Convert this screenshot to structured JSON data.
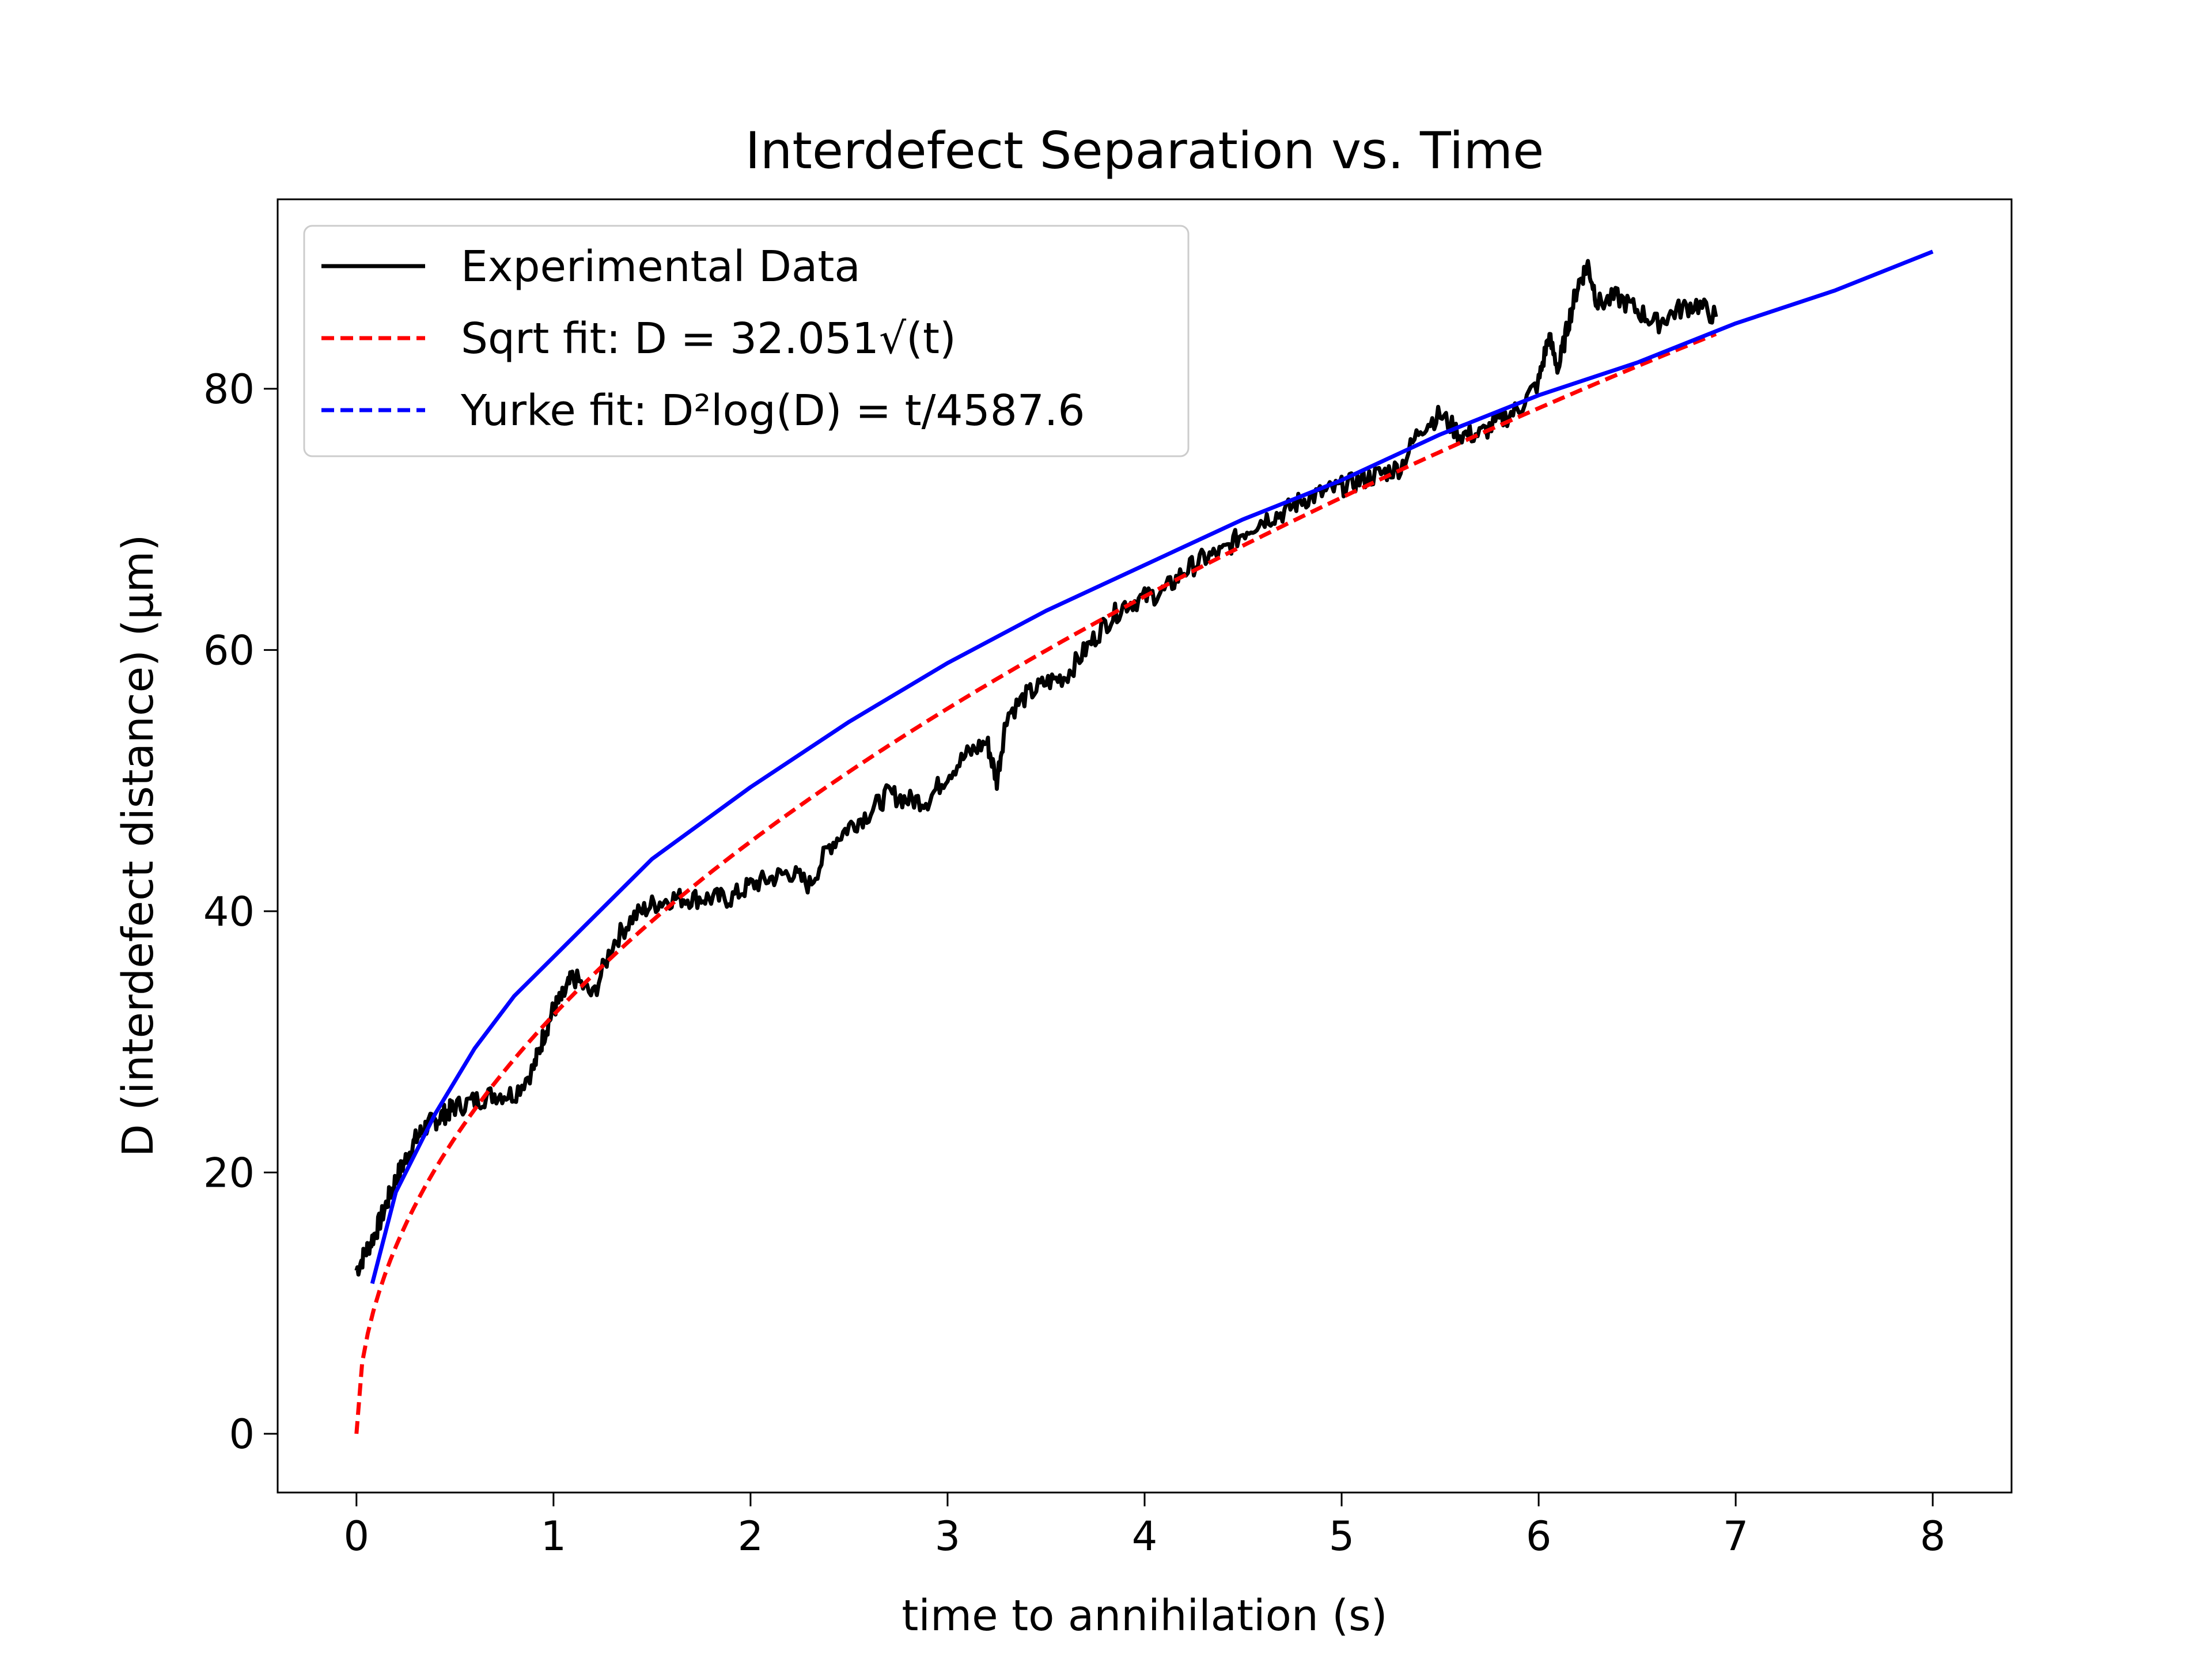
{
  "chart_data": {
    "type": "line",
    "title": "Interdefect Separation vs. Time",
    "xlabel": "time to annihilation (s)",
    "ylabel": "D (interdefect distance) (μm)",
    "xlim": [
      -0.4,
      8.4
    ],
    "ylim": [
      -4.5,
      94.5
    ],
    "xticks": [
      0,
      1,
      2,
      3,
      4,
      5,
      6,
      7,
      8
    ],
    "yticks": [
      0,
      20,
      40,
      60,
      80
    ],
    "grid": false,
    "legend_position": "top-left",
    "series": [
      {
        "name": "Experimental Data",
        "style": "solid",
        "color": "#000000",
        "x": [
          0.0,
          0.05,
          0.1,
          0.15,
          0.2,
          0.25,
          0.3,
          0.35,
          0.4,
          0.45,
          0.5,
          0.6,
          0.7,
          0.8,
          0.9,
          0.95,
          1.0,
          1.05,
          1.1,
          1.2,
          1.3,
          1.4,
          1.5,
          1.6,
          1.7,
          1.8,
          1.9,
          2.0,
          2.1,
          2.2,
          2.3,
          2.4,
          2.5,
          2.6,
          2.7,
          2.8,
          2.9,
          3.0,
          3.1,
          3.2,
          3.25,
          3.3,
          3.4,
          3.5,
          3.6,
          3.7,
          3.8,
          3.9,
          4.0,
          4.1,
          4.2,
          4.3,
          4.4,
          4.5,
          4.6,
          4.7,
          4.8,
          4.9,
          5.0,
          5.1,
          5.2,
          5.3,
          5.4,
          5.5,
          5.6,
          5.7,
          5.8,
          5.9,
          6.0,
          6.05,
          6.1,
          6.15,
          6.2,
          6.25,
          6.3,
          6.4,
          6.5,
          6.6,
          6.7,
          6.8,
          6.9
        ],
        "y": [
          12.5,
          14.0,
          15.5,
          17.5,
          19.5,
          21.0,
          22.5,
          23.5,
          24.0,
          24.5,
          25.0,
          25.5,
          26.0,
          26.0,
          28.0,
          30.5,
          32.5,
          33.5,
          35.0,
          33.5,
          37.5,
          39.5,
          40.5,
          41.0,
          41.0,
          41.0,
          41.0,
          42.0,
          42.5,
          43.0,
          42.0,
          45.0,
          46.5,
          47.5,
          49.0,
          48.5,
          48.5,
          50.5,
          52.0,
          53.0,
          50.0,
          55.0,
          56.5,
          57.5,
          58.0,
          60.0,
          62.0,
          63.5,
          64.0,
          64.5,
          66.0,
          67.0,
          67.5,
          69.0,
          70.0,
          70.5,
          71.5,
          72.0,
          72.5,
          73.0,
          73.5,
          74.0,
          77.0,
          78.0,
          76.5,
          76.5,
          77.5,
          78.5,
          80.5,
          84.0,
          81.5,
          85.0,
          88.0,
          89.5,
          86.5,
          87.0,
          86.0,
          85.0,
          86.0,
          86.5,
          85.5
        ]
      },
      {
        "name": "Sqrt fit: D = 32.051√(t)",
        "style": "dashed",
        "color": "#ff0000",
        "model": "sqrt",
        "coefficient": 32.051,
        "x_range": [
          0.0,
          6.9
        ]
      },
      {
        "name": "Yurke fit: D²log(D) = t/4587.6",
        "style": "dashed",
        "color": "#0000ff",
        "model": "yurke",
        "x_range": [
          0.08,
          8.0
        ],
        "x": [
          0.08,
          0.2,
          0.4,
          0.6,
          0.8,
          1.0,
          1.5,
          2.0,
          2.5,
          3.0,
          3.5,
          4.0,
          4.5,
          5.0,
          5.5,
          6.0,
          6.5,
          7.0,
          7.5,
          8.0
        ],
        "y": [
          11.5,
          18.5,
          24.5,
          29.5,
          33.5,
          36.5,
          44.0,
          49.5,
          54.5,
          59.0,
          63.0,
          66.5,
          70.0,
          73.0,
          76.5,
          79.5,
          82.0,
          85.0,
          87.5,
          90.5
        ]
      }
    ]
  }
}
